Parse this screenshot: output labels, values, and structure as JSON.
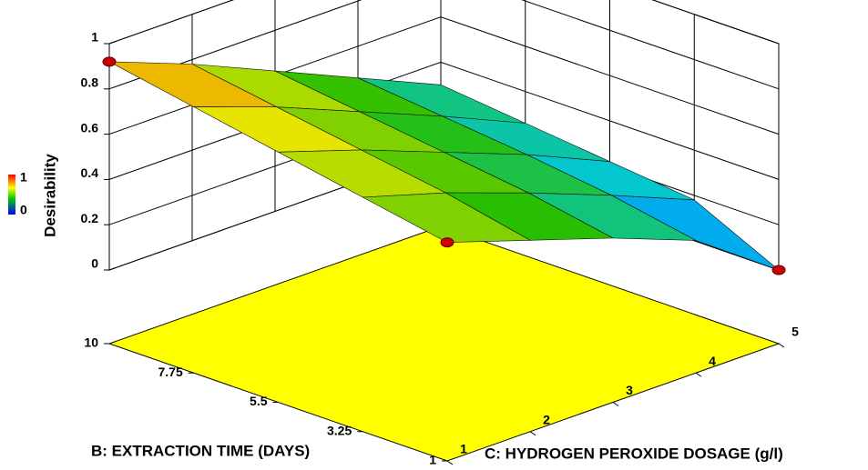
{
  "chart_data": {
    "type": "surface",
    "zlabel": "Desirability",
    "xlabel": "B: EXTRACTION TIME (DAYS)",
    "ylabel": "C: HYDROGEN PEROXIDE DOSAGE (g/l)",
    "x": [
      1,
      3.25,
      5.5,
      7.75,
      10
    ],
    "y": [
      1,
      2,
      3,
      4,
      5
    ],
    "z": [
      [
        0.64,
        0.52,
        0.4,
        0.26,
        0.0
      ],
      [
        0.71,
        0.6,
        0.47,
        0.33,
        0.18
      ],
      [
        0.78,
        0.66,
        0.52,
        0.38,
        0.22
      ],
      [
        0.85,
        0.72,
        0.57,
        0.42,
        0.26
      ],
      [
        0.92,
        0.78,
        0.62,
        0.46,
        0.3
      ]
    ],
    "xlim": [
      1,
      10
    ],
    "xticks": [
      1,
      3.25,
      5.5,
      7.75,
      10
    ],
    "ylim": [
      1,
      5
    ],
    "yticks": [
      1,
      2,
      3,
      4,
      5
    ],
    "zlim": [
      0,
      1
    ],
    "zticks": [
      0,
      0.2,
      0.4,
      0.6,
      0.8,
      1
    ],
    "clim": [
      0,
      1
    ],
    "cticks": [
      0,
      1
    ],
    "floor_color": "#ffff00",
    "point_color": "#cc0000"
  }
}
